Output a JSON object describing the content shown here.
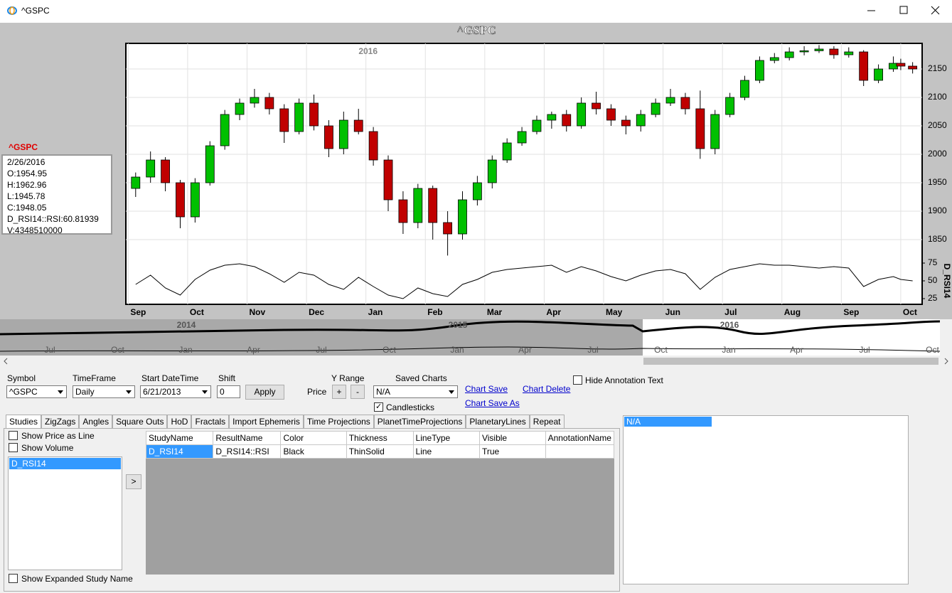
{
  "window": {
    "title": "^GSPC"
  },
  "chart_data": {
    "type": "candlestick",
    "title": "^GSPC",
    "annotations": [
      {
        "text": "2016",
        "x": 4
      }
    ],
    "x": [
      0.125,
      0.375,
      0.625,
      0.875,
      1.125,
      1.375,
      1.625,
      1.875,
      2.125,
      2.375,
      2.625,
      2.875,
      3.125,
      3.375,
      3.625,
      3.875,
      4.125,
      4.375,
      4.625,
      4.875,
      5.125,
      5.375,
      5.625,
      5.875,
      6.125,
      6.375,
      6.625,
      6.875,
      7.125,
      7.375,
      7.625,
      7.875,
      8.125,
      8.375,
      8.625,
      8.875,
      9.125,
      9.375,
      9.625,
      9.875,
      10.125,
      10.375,
      10.625,
      10.875,
      11.125,
      11.375,
      11.625,
      11.875,
      12.125,
      12.375,
      12.625,
      12.875,
      13.0,
      13.2
    ],
    "open": [
      1940,
      1960,
      1990,
      1950,
      1890,
      1950,
      2015,
      2070,
      2090,
      2100,
      2080,
      2040,
      2090,
      2050,
      2010,
      2060,
      2040,
      1990,
      1920,
      1880,
      1940,
      1880,
      1860,
      1920,
      1950,
      1990,
      2020,
      2040,
      2060,
      2070,
      2050,
      2090,
      2080,
      2060,
      2050,
      2070,
      2090,
      2100,
      2080,
      2010,
      2070,
      2100,
      2130,
      2165,
      2170,
      2180,
      2182,
      2185,
      2175,
      2180,
      2130,
      2150,
      2160,
      2155
    ],
    "high": [
      1968,
      2005,
      1995,
      1955,
      1958,
      2023,
      2078,
      2098,
      2115,
      2108,
      2088,
      2098,
      2105,
      2060,
      2075,
      2080,
      2048,
      1998,
      1935,
      1948,
      1945,
      1900,
      1935,
      1962,
      1998,
      2028,
      2048,
      2068,
      2075,
      2078,
      2100,
      2110,
      2088,
      2068,
      2078,
      2098,
      2115,
      2108,
      2112,
      2078,
      2108,
      2138,
      2172,
      2178,
      2188,
      2190,
      2192,
      2190,
      2188,
      2183,
      2158,
      2172,
      2168,
      2162
    ],
    "low": [
      1925,
      1950,
      1935,
      1870,
      1880,
      1945,
      2008,
      2060,
      2082,
      2070,
      2020,
      2035,
      2042,
      1995,
      2000,
      2035,
      1980,
      1900,
      1860,
      1870,
      1850,
      1822,
      1850,
      1910,
      1940,
      1985,
      2015,
      2035,
      2045,
      2040,
      2045,
      2070,
      2050,
      2035,
      2040,
      2065,
      2085,
      2070,
      1992,
      2000,
      2065,
      2095,
      2125,
      2160,
      2165,
      2174,
      2178,
      2168,
      2170,
      2120,
      2125,
      2145,
      2148,
      2142
    ],
    "close": [
      1960,
      1990,
      1950,
      1890,
      1950,
      2015,
      2070,
      2090,
      2100,
      2080,
      2040,
      2090,
      2050,
      2010,
      2060,
      2040,
      1990,
      1920,
      1880,
      1940,
      1880,
      1860,
      1920,
      1950,
      1990,
      2020,
      2040,
      2060,
      2070,
      2050,
      2090,
      2080,
      2060,
      2050,
      2070,
      2090,
      2100,
      2080,
      2010,
      2070,
      2100,
      2130,
      2165,
      2170,
      2180,
      2182,
      2185,
      2175,
      2180,
      2130,
      2150,
      2160,
      2155,
      2150
    ],
    "up_color": "#00c000",
    "down_color": "#c00000",
    "xlim": [
      -0.04,
      13.36
    ],
    "xticks": [
      {
        "value": 0,
        "label": "Sep"
      },
      {
        "value": 1,
        "label": "Oct"
      },
      {
        "value": 2,
        "label": "Nov"
      },
      {
        "value": 3,
        "label": "Dec"
      },
      {
        "value": 4,
        "label": "Jan"
      },
      {
        "value": 5,
        "label": "Feb"
      },
      {
        "value": 6,
        "label": "Mar"
      },
      {
        "value": 7,
        "label": "Apr"
      },
      {
        "value": 8,
        "label": "May"
      },
      {
        "value": 9,
        "label": "Jun"
      },
      {
        "value": 10,
        "label": "Jul"
      },
      {
        "value": 11,
        "label": "Aug"
      },
      {
        "value": 12,
        "label": "Sep"
      },
      {
        "value": 13,
        "label": "Oct"
      }
    ],
    "ylim": [
      1815,
      2195
    ],
    "yticks": [
      1850,
      1900,
      1950,
      2000,
      2050,
      2100,
      2150
    ],
    "grid": true,
    "rsi": {
      "name": "D_RSI14",
      "color": "#000000",
      "ylim": [
        17,
        77
      ],
      "yticks": [
        25,
        50,
        75
      ],
      "values": [
        45,
        58,
        40,
        30,
        52,
        65,
        72,
        74,
        70,
        60,
        48,
        62,
        58,
        45,
        38,
        55,
        42,
        30,
        25,
        40,
        32,
        28,
        45,
        52,
        62,
        66,
        68,
        70,
        72,
        62,
        70,
        64,
        56,
        50,
        58,
        64,
        66,
        60,
        38,
        55,
        66,
        70,
        74,
        72,
        72,
        70,
        68,
        70,
        68,
        42,
        52,
        56,
        52,
        50
      ]
    }
  },
  "info_box": {
    "symbol": "^GSPC",
    "lines": [
      "2/26/2016",
      "O:1954.95",
      "H:1962.96",
      "L:1945.78",
      "C:1948.05",
      "D_RSI14::RSI:60.81939",
      "V:4348510000"
    ]
  },
  "navigator": {
    "years": [
      "2014",
      "2015",
      "2016"
    ],
    "months": [
      "Jul",
      "Oct",
      "Jan",
      "Apr",
      "Jul",
      "Oct",
      "Jan",
      "Apr",
      "Jul",
      "Oct",
      "Jan",
      "Apr",
      "Jul",
      "Oct"
    ]
  },
  "controls": {
    "symbol_label": "Symbol",
    "symbol": "^GSPC",
    "timeframe_label": "TimeFrame",
    "timeframe": "Daily",
    "start_label": "Start DateTime",
    "start": "6/21/2013",
    "shift_label": "Shift",
    "shift": "0",
    "apply": "Apply",
    "yrange_label": "Y Range",
    "price_label": "Price",
    "plus": "+",
    "minus": "-",
    "saved_label": "Saved Charts",
    "saved": "N/A",
    "candlesticks": "Candlesticks",
    "chart_save": "Chart Save",
    "chart_delete": "Chart Delete",
    "chart_save_as": "Chart Save As",
    "hide_annotation": "Hide Annotation Text"
  },
  "tabs": [
    "Studies",
    "ZigZags",
    "Angles",
    "Square Outs",
    "HoD",
    "Fractals",
    "Import Ephemeris",
    "Time Projections",
    "PlanetTimeProjections",
    "PlanetaryLines",
    "Repeat"
  ],
  "studies_panel": {
    "show_price_line": "Show Price as Line",
    "show_volume": "Show Volume",
    "studies": [
      "D_RSI14"
    ],
    "move": ">",
    "show_expanded": "Show Expanded Study Name"
  },
  "table": {
    "headers": [
      "StudyName",
      "ResultName",
      "Color",
      "Thickness",
      "LineType",
      "Visible",
      "AnnotationName"
    ],
    "rows": [
      [
        "D_RSI14",
        "D_RSI14::RSI",
        "Black",
        "ThinSolid",
        "Line",
        "True"
      ]
    ]
  },
  "right_list": {
    "items": [
      "N/A"
    ]
  }
}
